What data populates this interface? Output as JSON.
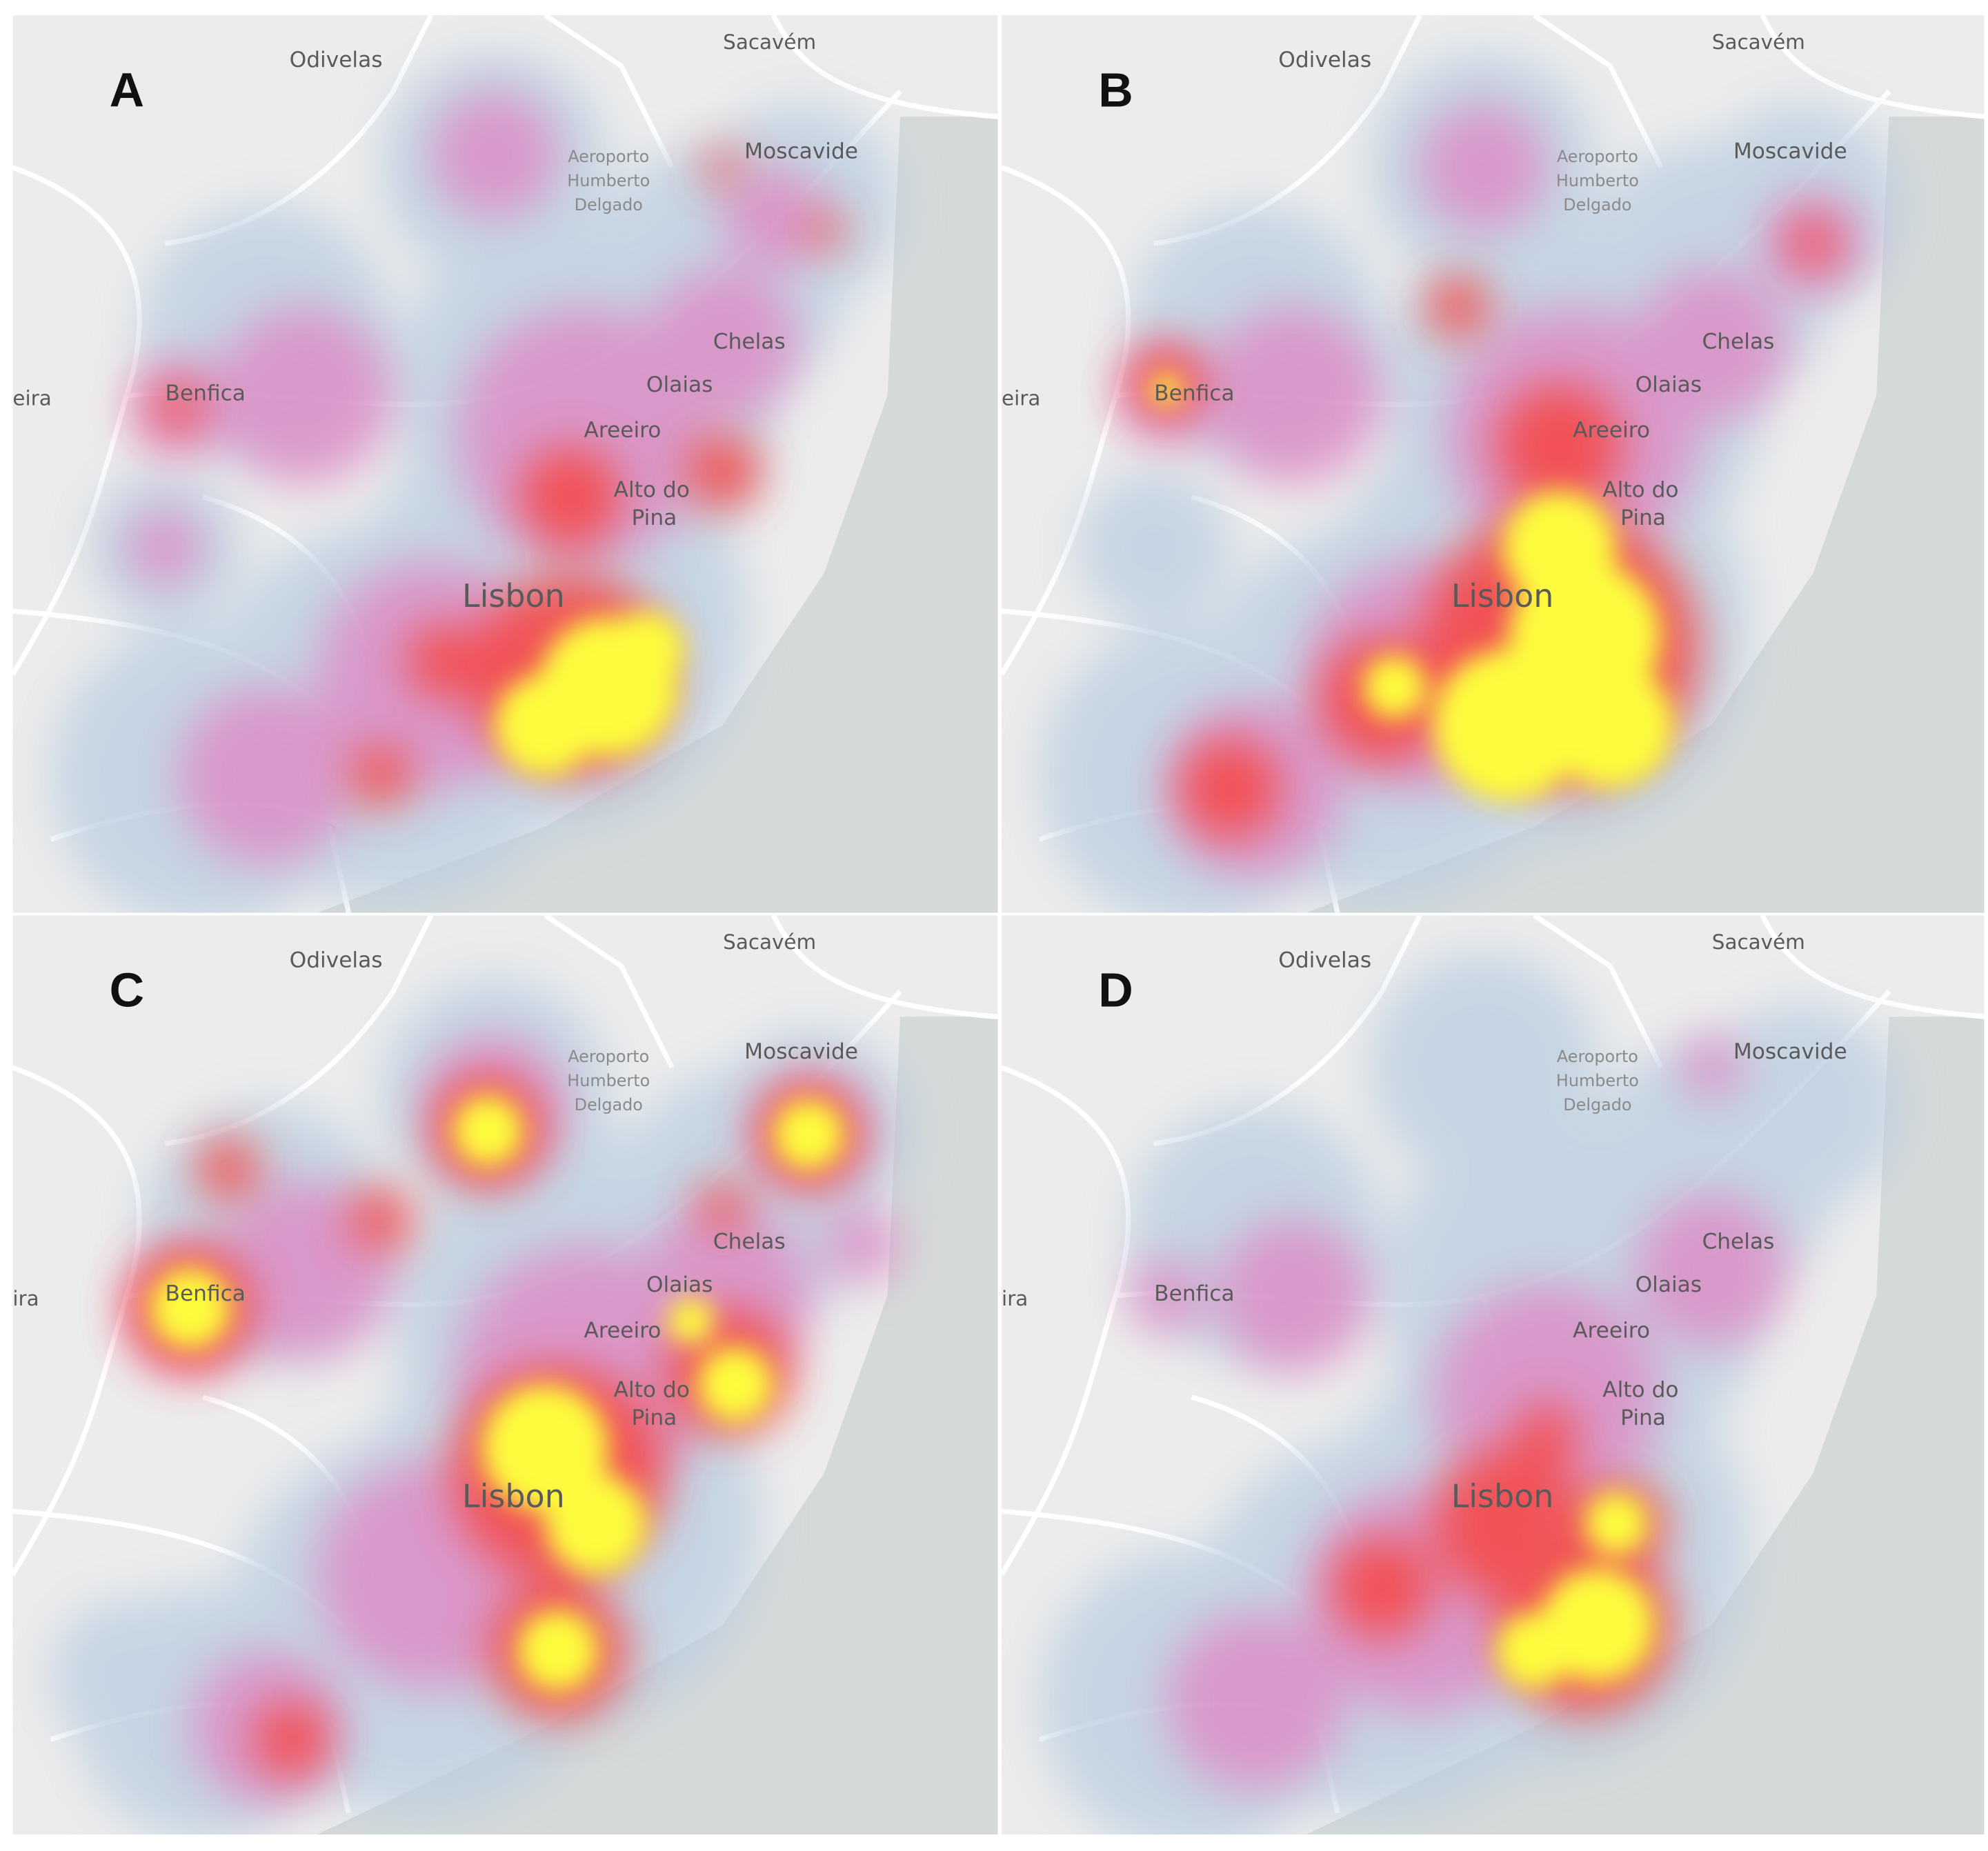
{
  "panels": [
    {
      "label": "A",
      "places": [
        "Odivelas",
        "Sacavém",
        "Aeroporto",
        "Humberto",
        "Delgado",
        "Moscavide",
        "Chelas",
        "Benfica",
        "Olaias",
        "Areeiro",
        "Alto do",
        "Pina",
        "Lisbon",
        "eira"
      ]
    },
    {
      "label": "B",
      "places": [
        "Odivelas",
        "Sacavém",
        "Aeroporto",
        "Humberto",
        "Delgado",
        "Moscavide",
        "Chelas",
        "Benfica",
        "Olaias",
        "Areeiro",
        "Alto do",
        "Pina",
        "Lisbon",
        "eira"
      ]
    },
    {
      "label": "C",
      "places": [
        "Odivelas",
        "Sacavém",
        "Aeroporto",
        "Humberto",
        "Delgado",
        "Moscavide",
        "Chelas",
        "Benfica",
        "Olaias",
        "Areeiro",
        "Alto do",
        "Pina",
        "Lisbon",
        "ira"
      ]
    },
    {
      "label": "D",
      "places": [
        "Odivelas",
        "Sacavém",
        "Aeroporto",
        "Humberto",
        "Delgado",
        "Moscavide",
        "Chelas",
        "Benfica",
        "Olaias",
        "Areeiro",
        "Alto do",
        "Pina",
        "Lisbon",
        "ira"
      ]
    }
  ]
}
